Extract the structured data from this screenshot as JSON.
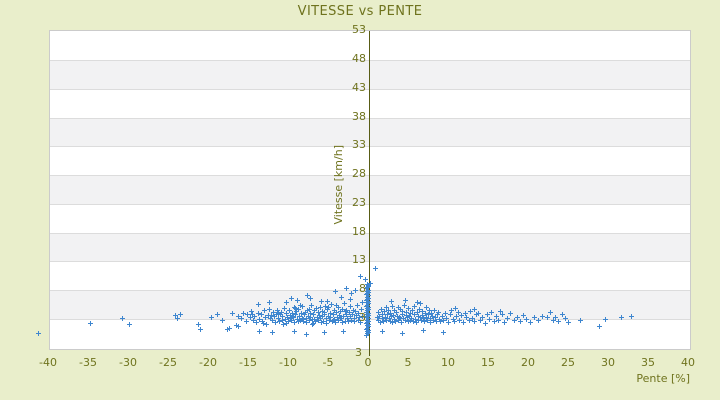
{
  "title": "VITESSE vs PENTE",
  "colors": {
    "background": "#e9eecb",
    "olive_text": "#6f731e",
    "axis_line": "#585c15",
    "point_blue": "#3e86cf",
    "band_white": "#ffffff",
    "band_gray": "#f2f2f3",
    "gridline": "#dcdcdc",
    "plot_border": "#cbcbcb"
  },
  "chart_data": {
    "type": "scatter",
    "title": "VITESSE vs PENTE",
    "xlabel": "Pente [%]",
    "ylabel": "Vitesse [km/h]",
    "x_ticks": [
      -40,
      -35,
      -30,
      -25,
      -20,
      -15,
      -10,
      -5,
      0,
      5,
      10,
      15,
      20,
      25,
      30,
      35,
      40
    ],
    "y_ticks": [
      53,
      48,
      43,
      38,
      33,
      28,
      23,
      18,
      13,
      8,
      3
    ],
    "y_axis_bottom_label": "3",
    "xlim": [
      -40,
      40.3
    ],
    "ylim": [
      -2.6,
      53.1
    ],
    "grid": "horizontal-bands-alternating",
    "legend": "none",
    "marker": "plus",
    "points": [
      [
        -41.3,
        0.6
      ],
      [
        -34.8,
        2.3
      ],
      [
        -30.8,
        3.2
      ],
      [
        -29.9,
        2.1
      ],
      [
        -24.1,
        3.7
      ],
      [
        -23.9,
        3.1
      ],
      [
        -23.5,
        3.9
      ],
      [
        -21.2,
        2.1
      ],
      [
        -21.0,
        1.3
      ],
      [
        -19.6,
        3.4
      ],
      [
        -18.9,
        3.9
      ],
      [
        -18.2,
        2.9
      ],
      [
        -17.6,
        1.2
      ],
      [
        -17.4,
        1.5
      ],
      [
        -17.0,
        4.1
      ],
      [
        -16.5,
        1.9
      ],
      [
        -16.3,
        1.7
      ],
      [
        -16.2,
        3.6
      ],
      [
        -13.6,
        0.9
      ],
      [
        -12.0,
        0.8
      ],
      [
        -9.3,
        0.9
      ],
      [
        -7.8,
        0.4
      ],
      [
        -5.5,
        0.7
      ],
      [
        -3.1,
        1.0
      ],
      [
        1.8,
        0.9
      ],
      [
        4.2,
        0.6
      ],
      [
        6.9,
        1.1
      ],
      [
        9.4,
        0.8
      ],
      [
        -15.9,
        3.1
      ],
      [
        -15.6,
        4.0
      ],
      [
        -15.3,
        2.6
      ],
      [
        -15.1,
        3.8
      ],
      [
        -14.8,
        3.3
      ],
      [
        -14.6,
        4.4
      ],
      [
        -14.4,
        2.9
      ],
      [
        -14.2,
        3.6
      ],
      [
        -14.0,
        2.4
      ],
      [
        -13.8,
        4.1
      ],
      [
        -13.6,
        3.0
      ],
      [
        -13.4,
        3.9
      ],
      [
        -13.2,
        2.7
      ],
      [
        -13.0,
        4.5
      ],
      [
        -12.9,
        3.4
      ],
      [
        -12.7,
        2.2
      ],
      [
        -12.5,
        3.7
      ],
      [
        -12.4,
        4.8
      ],
      [
        -12.2,
        3.1
      ],
      [
        -12.0,
        2.8
      ],
      [
        -11.9,
        4.2
      ],
      [
        -11.8,
        3.5
      ],
      [
        -11.6,
        2.5
      ],
      [
        -11.5,
        3.9
      ],
      [
        -11.4,
        4.6
      ],
      [
        -11.3,
        3.2
      ],
      [
        -11.1,
        2.7
      ],
      [
        -11.0,
        3.8
      ],
      [
        -10.9,
        4.3
      ],
      [
        -10.8,
        2.9
      ],
      [
        -10.7,
        3.5
      ],
      [
        -10.5,
        4.9
      ],
      [
        -10.4,
        3.0
      ],
      [
        -10.3,
        2.3
      ],
      [
        -10.2,
        4.0
      ],
      [
        -10.1,
        3.4
      ],
      [
        -10.0,
        2.6
      ],
      [
        -9.9,
        4.5
      ],
      [
        -9.8,
        3.7
      ],
      [
        -9.7,
        3.1
      ],
      [
        -9.6,
        2.8
      ],
      [
        -9.5,
        4.1
      ],
      [
        -9.4,
        3.3
      ],
      [
        -9.3,
        5.0
      ],
      [
        -9.2,
        2.4
      ],
      [
        -9.1,
        3.8
      ],
      [
        -9.0,
        4.4
      ],
      [
        -8.9,
        3.0
      ],
      [
        -8.8,
        2.6
      ],
      [
        -8.7,
        4.7
      ],
      [
        -8.6,
        3.5
      ],
      [
        -8.5,
        2.9
      ],
      [
        -8.4,
        4.0
      ],
      [
        -8.3,
        3.2
      ],
      [
        -8.2,
        5.2
      ],
      [
        -8.1,
        2.7
      ],
      [
        -8.0,
        3.9
      ],
      [
        -7.9,
        4.3
      ],
      [
        -7.8,
        3.1
      ],
      [
        -7.7,
        2.5
      ],
      [
        -7.6,
        4.6
      ],
      [
        -7.5,
        3.6
      ],
      [
        -7.4,
        2.8
      ],
      [
        -7.3,
        4.1
      ],
      [
        -7.2,
        3.3
      ],
      [
        -7.1,
        5.4
      ],
      [
        -7.0,
        2.2
      ],
      [
        -6.9,
        3.8
      ],
      [
        -6.8,
        4.5
      ],
      [
        -6.7,
        3.0
      ],
      [
        -6.6,
        2.6
      ],
      [
        -6.5,
        4.9
      ],
      [
        -6.4,
        3.4
      ],
      [
        -6.3,
        2.9
      ],
      [
        -6.2,
        4.2
      ],
      [
        -6.1,
        3.7
      ],
      [
        -6.0,
        5.1
      ],
      [
        -5.9,
        2.4
      ],
      [
        -5.8,
        3.5
      ],
      [
        -5.7,
        4.4
      ],
      [
        -5.6,
        2.7
      ],
      [
        -5.5,
        3.9
      ],
      [
        -5.4,
        5.3
      ],
      [
        -5.3,
        3.1
      ],
      [
        -5.2,
        2.3
      ],
      [
        -5.1,
        4.7
      ],
      [
        -5.0,
        3.6
      ],
      [
        -4.9,
        2.9
      ],
      [
        -4.8,
        4.1
      ],
      [
        -4.7,
        3.3
      ],
      [
        -4.6,
        5.6
      ],
      [
        -4.5,
        2.6
      ],
      [
        -4.4,
        3.8
      ],
      [
        -4.3,
        4.6
      ],
      [
        -4.2,
        3.0
      ],
      [
        -4.1,
        2.5
      ],
      [
        -4.0,
        4.3
      ],
      [
        -3.9,
        3.4
      ],
      [
        -3.8,
        5.0
      ],
      [
        -3.7,
        2.8
      ],
      [
        -3.6,
        3.7
      ],
      [
        -3.5,
        4.4
      ],
      [
        -3.4,
        3.2
      ],
      [
        -3.3,
        2.4
      ],
      [
        -3.2,
        4.8
      ],
      [
        -3.1,
        3.5
      ],
      [
        -3.0,
        5.8
      ],
      [
        -2.9,
        2.7
      ],
      [
        -2.8,
        3.9
      ],
      [
        -2.7,
        4.5
      ],
      [
        -2.6,
        3.1
      ],
      [
        -2.5,
        2.6
      ],
      [
        -2.4,
        4.2
      ],
      [
        -2.3,
        3.6
      ],
      [
        -2.2,
        5.2
      ],
      [
        -2.1,
        2.9
      ],
      [
        -2.0,
        3.8
      ],
      [
        -1.9,
        4.6
      ],
      [
        -1.8,
        3.2
      ],
      [
        -1.7,
        2.7
      ],
      [
        -1.6,
        4.4
      ],
      [
        -1.5,
        3.7
      ],
      [
        -1.4,
        5.5
      ],
      [
        -1.3,
        2.9
      ],
      [
        -1.2,
        4.0
      ],
      [
        -1.1,
        3.3
      ],
      [
        -1.0,
        2.5
      ],
      [
        -0.9,
        4.7
      ],
      [
        -0.8,
        3.5
      ],
      [
        -0.7,
        5.9
      ],
      [
        -12.4,
        5.9
      ],
      [
        -8.9,
        6.3
      ],
      [
        -7.2,
        6.6
      ],
      [
        -5.1,
        6.2
      ],
      [
        -3.4,
        6.8
      ],
      [
        -2.2,
        6.4
      ],
      [
        -10.3,
        6.0
      ],
      [
        -13.8,
        5.6
      ],
      [
        -9.6,
        6.6
      ],
      [
        -7.6,
        7.2
      ],
      [
        -4.1,
        7.9
      ],
      [
        -2.7,
        8.3
      ],
      [
        -1.6,
        8.0
      ],
      [
        -2.1,
        7.5
      ],
      [
        -9.45,
        3.45
      ],
      [
        -8.15,
        3.05
      ],
      [
        -7.35,
        4.75
      ],
      [
        -6.85,
        2.35
      ],
      [
        -6.05,
        3.25
      ],
      [
        -5.45,
        4.15
      ],
      [
        -4.95,
        5.05
      ],
      [
        -4.35,
        2.85
      ],
      [
        -3.55,
        3.15
      ],
      [
        -2.85,
        4.35
      ],
      [
        -12.1,
        3.65
      ],
      [
        -11.2,
        4.05
      ],
      [
        -10.6,
        2.05
      ],
      [
        -9.15,
        4.85
      ],
      [
        -13.1,
        2.35
      ],
      [
        -14.5,
        3.95
      ],
      [
        -8.55,
        5.45
      ],
      [
        -7.05,
        2.95
      ],
      [
        -5.85,
        6.05
      ],
      [
        -3.95,
        5.45
      ],
      [
        -0.2,
        0.3
      ],
      [
        -0.1,
        0.5
      ],
      [
        0,
        0.7
      ],
      [
        -0.15,
        0.9
      ],
      [
        -0.05,
        1.1
      ],
      [
        -0.2,
        1.3
      ],
      [
        -0.1,
        1.5
      ],
      [
        0,
        1.7
      ],
      [
        -0.15,
        1.9
      ],
      [
        -0.05,
        2.1
      ],
      [
        -0.2,
        2.3
      ],
      [
        -0.1,
        2.5
      ],
      [
        0,
        2.7
      ],
      [
        -0.15,
        2.9
      ],
      [
        -0.05,
        3.1
      ],
      [
        -0.2,
        3.3
      ],
      [
        -0.1,
        3.5
      ],
      [
        0,
        3.7
      ],
      [
        -0.15,
        3.9
      ],
      [
        -0.05,
        4.1
      ],
      [
        -0.2,
        4.3
      ],
      [
        -0.1,
        4.5
      ],
      [
        0,
        4.7
      ],
      [
        -0.15,
        4.9
      ],
      [
        -0.05,
        5.1
      ],
      [
        -0.2,
        5.3
      ],
      [
        -0.1,
        5.5
      ],
      [
        0,
        5.7
      ],
      [
        -0.15,
        5.9
      ],
      [
        -0.05,
        6.1
      ],
      [
        -0.2,
        6.3
      ],
      [
        -0.1,
        6.5
      ],
      [
        0,
        6.7
      ],
      [
        -0.15,
        6.9
      ],
      [
        -0.05,
        7.1
      ],
      [
        -0.2,
        7.3
      ],
      [
        -0.1,
        7.5
      ],
      [
        0,
        7.7
      ],
      [
        -0.15,
        7.9
      ],
      [
        -0.05,
        8.1
      ],
      [
        -0.2,
        8.3
      ],
      [
        -0.1,
        8.5
      ],
      [
        0,
        8.7
      ],
      [
        0,
        8.9
      ],
      [
        -0.1,
        9.1
      ],
      [
        0.3,
        9.3
      ],
      [
        -0.4,
        9.9
      ],
      [
        -1.0,
        10.4
      ],
      [
        0.9,
        11.9
      ],
      [
        1.1,
        3.4
      ],
      [
        1.2,
        2.8
      ],
      [
        1.3,
        4.2
      ],
      [
        1.4,
        3.6
      ],
      [
        1.5,
        2.5
      ],
      [
        1.6,
        4.7
      ],
      [
        1.7,
        3.1
      ],
      [
        1.8,
        3.9
      ],
      [
        1.9,
        2.7
      ],
      [
        2.0,
        4.4
      ],
      [
        2.1,
        3.3
      ],
      [
        2.2,
        5.0
      ],
      [
        2.3,
        2.9
      ],
      [
        2.4,
        3.8
      ],
      [
        2.5,
        4.5
      ],
      [
        2.6,
        3.2
      ],
      [
        2.7,
        2.6
      ],
      [
        2.8,
        4.1
      ],
      [
        2.9,
        3.5
      ],
      [
        3.0,
        5.3
      ],
      [
        3.05,
        2.4
      ],
      [
        3.1,
        3.7
      ],
      [
        3.2,
        4.6
      ],
      [
        3.3,
        3.0
      ],
      [
        3.4,
        2.7
      ],
      [
        3.5,
        4.3
      ],
      [
        3.6,
        3.6
      ],
      [
        3.7,
        5.1
      ],
      [
        3.8,
        2.9
      ],
      [
        3.9,
        3.4
      ],
      [
        4.0,
        4.8
      ],
      [
        4.05,
        3.2
      ],
      [
        4.1,
        2.5
      ],
      [
        4.2,
        3.9
      ],
      [
        4.3,
        4.4
      ],
      [
        4.4,
        3.1
      ],
      [
        4.5,
        5.5
      ],
      [
        4.6,
        2.8
      ],
      [
        4.7,
        3.7
      ],
      [
        4.8,
        4.2
      ],
      [
        4.9,
        3.3
      ],
      [
        5.0,
        2.6
      ],
      [
        5.05,
        4.9
      ],
      [
        5.1,
        3.5
      ],
      [
        5.2,
        2.9
      ],
      [
        5.3,
        4.0
      ],
      [
        5.4,
        3.2
      ],
      [
        5.5,
        4.6
      ],
      [
        5.6,
        2.7
      ],
      [
        5.7,
        3.8
      ],
      [
        5.8,
        5.2
      ],
      [
        5.9,
        3.0
      ],
      [
        6.0,
        2.4
      ],
      [
        6.1,
        4.3
      ],
      [
        6.2,
        3.6
      ],
      [
        6.3,
        2.8
      ],
      [
        6.4,
        4.7
      ],
      [
        6.5,
        3.3
      ],
      [
        6.55,
        5.7
      ],
      [
        6.6,
        2.9
      ],
      [
        6.7,
        3.7
      ],
      [
        6.8,
        4.4
      ],
      [
        6.9,
        3.1
      ],
      [
        7.0,
        2.6
      ],
      [
        7.1,
        4.0
      ],
      [
        7.2,
        3.4
      ],
      [
        7.3,
        5.0
      ],
      [
        7.4,
        2.8
      ],
      [
        7.5,
        3.8
      ],
      [
        7.6,
        4.5
      ],
      [
        7.7,
        3.2
      ],
      [
        7.8,
        2.5
      ],
      [
        7.9,
        4.1
      ],
      [
        8.0,
        3.5
      ],
      [
        8.1,
        2.9
      ],
      [
        8.2,
        4.6
      ],
      [
        8.35,
        3.3
      ],
      [
        8.5,
        2.6
      ],
      [
        8.6,
        3.9
      ],
      [
        8.75,
        4.2
      ],
      [
        8.9,
        3.0
      ],
      [
        9.0,
        2.7
      ],
      [
        2.9,
        6.1
      ],
      [
        4.6,
        6.3
      ],
      [
        6.1,
        5.9
      ],
      [
        9.2,
        3.6
      ],
      [
        9.4,
        2.8
      ],
      [
        9.6,
        4.1
      ],
      [
        9.8,
        3.2
      ],
      [
        10.0,
        2.5
      ],
      [
        10.2,
        3.9
      ],
      [
        10.4,
        4.5
      ],
      [
        10.6,
        3.0
      ],
      [
        10.8,
        2.7
      ],
      [
        11.0,
        3.5
      ],
      [
        11.2,
        4.2
      ],
      [
        11.4,
        2.9
      ],
      [
        11.6,
        3.7
      ],
      [
        11.9,
        2.4
      ],
      [
        12.1,
        4.0
      ],
      [
        12.3,
        3.3
      ],
      [
        12.6,
        2.8
      ],
      [
        12.8,
        4.4
      ],
      [
        13.0,
        3.1
      ],
      [
        13.3,
        2.6
      ],
      [
        13.5,
        3.8
      ],
      [
        13.8,
        4.1
      ],
      [
        14.0,
        2.9
      ],
      [
        14.3,
        3.4
      ],
      [
        14.6,
        2.3
      ],
      [
        14.9,
        3.9
      ],
      [
        15.1,
        3.0
      ],
      [
        15.4,
        4.3
      ],
      [
        15.7,
        2.7
      ],
      [
        16.0,
        3.5
      ],
      [
        16.3,
        2.9
      ],
      [
        16.7,
        3.8
      ],
      [
        17.0,
        2.5
      ],
      [
        17.4,
        3.2
      ],
      [
        17.8,
        4.0
      ],
      [
        18.2,
        2.8
      ],
      [
        18.6,
        3.4
      ],
      [
        19.0,
        2.6
      ],
      [
        19.4,
        3.7
      ],
      [
        19.8,
        3.0
      ],
      [
        20.3,
        2.4
      ],
      [
        20.8,
        3.3
      ],
      [
        21.3,
        2.9
      ],
      [
        21.8,
        3.5
      ],
      [
        10.9,
        4.9
      ],
      [
        13.2,
        4.7
      ],
      [
        16.5,
        4.4
      ],
      [
        22.4,
        3.4
      ],
      [
        22.8,
        4.2
      ],
      [
        23.1,
        2.9
      ],
      [
        23.4,
        3.3
      ],
      [
        23.8,
        2.6
      ],
      [
        24.3,
        3.8
      ],
      [
        24.6,
        3.1
      ],
      [
        25.0,
        2.4
      ],
      [
        26.5,
        2.8
      ],
      [
        28.9,
        1.8
      ],
      [
        29.6,
        3.0
      ],
      [
        31.6,
        3.3
      ],
      [
        32.9,
        3.5
      ]
    ]
  }
}
